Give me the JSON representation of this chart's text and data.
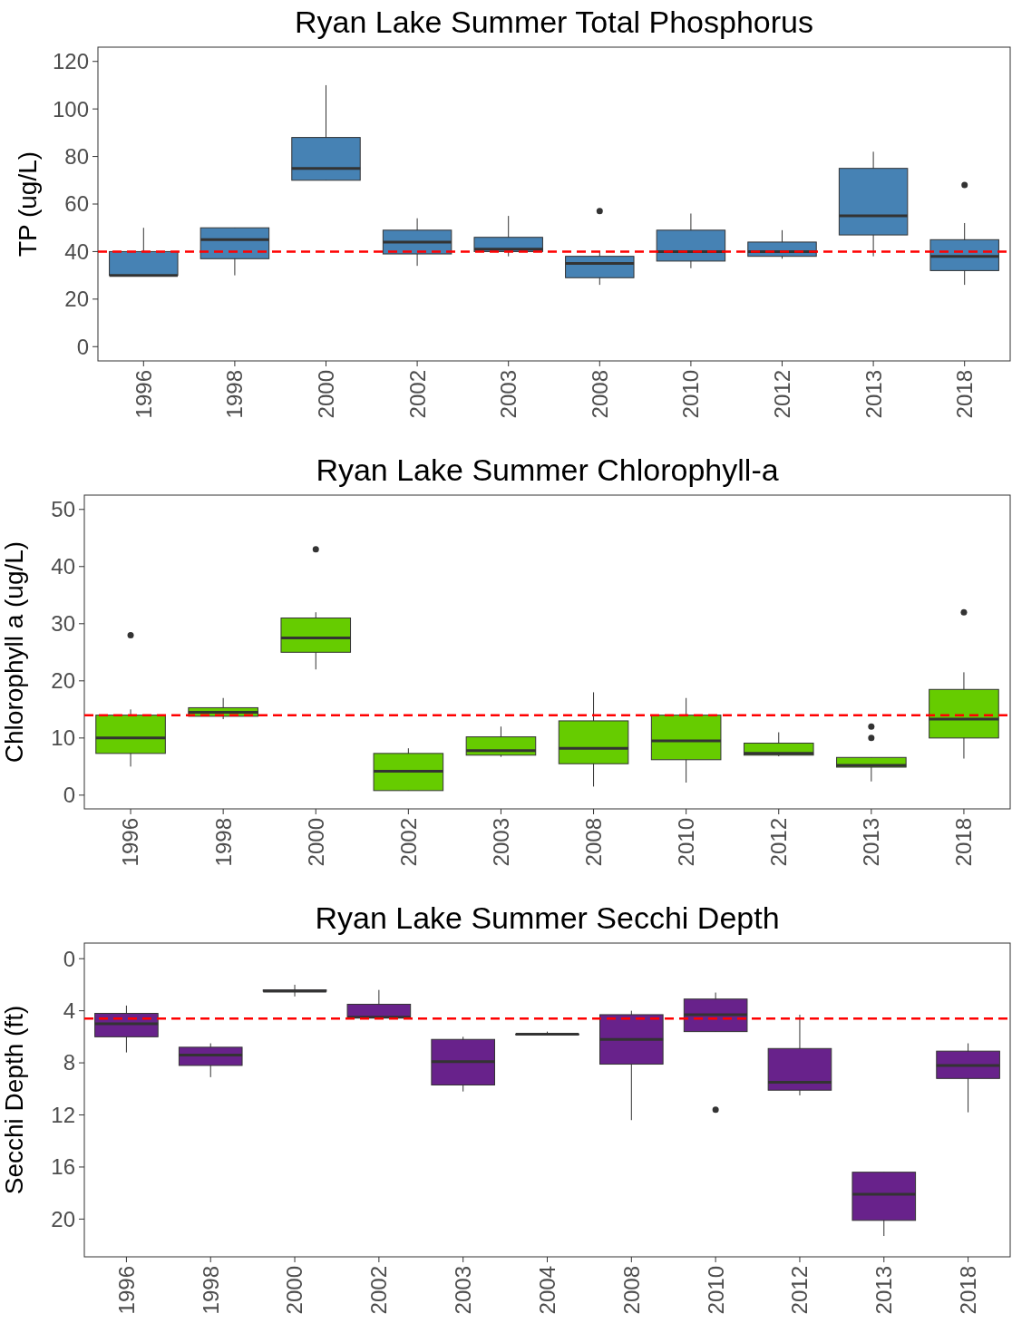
{
  "chart_data": [
    {
      "type": "box",
      "title": "Ryan Lake Summer Total Phosphorus",
      "ylabel": "TP (ug/L)",
      "color": "#4682b4",
      "ylim": [
        -6,
        126
      ],
      "yticks": [
        0,
        20,
        40,
        60,
        80,
        100,
        120
      ],
      "grid": false,
      "categories": [
        "1996",
        "1998",
        "2000",
        "2002",
        "2003",
        "2008",
        "2010",
        "2012",
        "2013",
        "2018"
      ],
      "boxes": [
        {
          "low": 30,
          "q1": 30,
          "median": 30,
          "q3": 40,
          "high": 50
        },
        {
          "low": 30,
          "q1": 37,
          "median": 45,
          "q3": 50,
          "high": 50
        },
        {
          "low": 70,
          "q1": 70,
          "median": 75,
          "q3": 88,
          "high": 110
        },
        {
          "low": 34,
          "q1": 39,
          "median": 44,
          "q3": 49,
          "high": 54
        },
        {
          "low": 38,
          "q1": 40,
          "median": 41,
          "q3": 46,
          "high": 55
        },
        {
          "low": 26,
          "q1": 29,
          "median": 35,
          "q3": 38,
          "high": 40,
          "outliers": [
            57
          ]
        },
        {
          "low": 33,
          "q1": 36,
          "median": 40,
          "q3": 49,
          "high": 56
        },
        {
          "low": 37,
          "q1": 38,
          "median": 40,
          "q3": 44,
          "high": 49
        },
        {
          "low": 38,
          "q1": 47,
          "median": 55,
          "q3": 75,
          "high": 82
        },
        {
          "low": 26,
          "q1": 32,
          "median": 38,
          "q3": 45,
          "high": 52,
          "outliers": [
            68
          ]
        }
      ],
      "ref_lines": [
        {
          "axis": "y",
          "value": 40,
          "color": "#ff0000",
          "line_style": "dashed"
        }
      ]
    },
    {
      "type": "box",
      "title": "Ryan Lake Summer Chlorophyll-a",
      "ylabel": "Chlorophyll a (ug/L)",
      "color": "#66cc00",
      "ylim": [
        -2.4,
        52.5
      ],
      "yticks": [
        0,
        10,
        20,
        30,
        40,
        50
      ],
      "grid": false,
      "categories": [
        "1996",
        "1998",
        "2000",
        "2002",
        "2003",
        "2008",
        "2010",
        "2012",
        "2013",
        "2018"
      ],
      "boxes": [
        {
          "low": 5,
          "q1": 7.3,
          "median": 10,
          "q3": 14,
          "high": 15,
          "outliers": [
            28
          ]
        },
        {
          "low": 13.3,
          "q1": 13.8,
          "median": 14.5,
          "q3": 15.3,
          "high": 17
        },
        {
          "low": 22,
          "q1": 25,
          "median": 27.5,
          "q3": 31,
          "high": 32,
          "outliers": [
            43
          ]
        },
        {
          "low": 0.8,
          "q1": 0.8,
          "median": 4.2,
          "q3": 7.3,
          "high": 8.2
        },
        {
          "low": 6.7,
          "q1": 7,
          "median": 7.8,
          "q3": 10.2,
          "high": 12
        },
        {
          "low": 1.5,
          "q1": 5.5,
          "median": 8.2,
          "q3": 13,
          "high": 18
        },
        {
          "low": 2.2,
          "q1": 6.2,
          "median": 9.5,
          "q3": 14,
          "high": 17
        },
        {
          "low": 6.8,
          "q1": 7,
          "median": 7.3,
          "q3": 9.1,
          "high": 11
        },
        {
          "low": 2.4,
          "q1": 4.9,
          "median": 5.2,
          "q3": 6.6,
          "high": 6.6,
          "outliers": [
            10,
            12
          ]
        },
        {
          "low": 6.4,
          "q1": 10,
          "median": 13.3,
          "q3": 18.5,
          "high": 21.5,
          "outliers": [
            32
          ]
        }
      ],
      "ref_lines": [
        {
          "axis": "y",
          "value": 14,
          "color": "#ff0000",
          "line_style": "dashed"
        }
      ]
    },
    {
      "type": "box",
      "title": "Ryan Lake Summer Secchi Depth",
      "ylabel": "Secchi Depth (ft)",
      "color": "#68228b",
      "ylim": [
        22.9,
        -1.2
      ],
      "yticks": [
        0,
        4,
        8,
        12,
        16,
        20
      ],
      "grid": false,
      "categories": [
        "1996",
        "1998",
        "2000",
        "2002",
        "2003",
        "2004",
        "2008",
        "2010",
        "2012",
        "2013",
        "2018"
      ],
      "boxes": [
        {
          "low": 3.6,
          "q1": 4.2,
          "median": 5,
          "q3": 6,
          "high": 7.2
        },
        {
          "low": 6.5,
          "q1": 6.8,
          "median": 7.4,
          "q3": 8.2,
          "high": 9.1
        },
        {
          "low": 2,
          "q1": 2.4,
          "median": 2.5,
          "q3": 2.5,
          "high": 2.9
        },
        {
          "low": 2.4,
          "q1": 3.5,
          "median": 4.5,
          "q3": 4.5,
          "high": 4.5
        },
        {
          "low": 6,
          "q1": 6.2,
          "median": 7.9,
          "q3": 9.7,
          "high": 10.2
        },
        {
          "low": 5.6,
          "q1": 5.8,
          "median": 5.8,
          "q3": 5.8,
          "high": 5.8
        },
        {
          "low": 4,
          "q1": 4.3,
          "median": 6.2,
          "q3": 8.1,
          "high": 12.4
        },
        {
          "low": 2.6,
          "q1": 3.1,
          "median": 4.3,
          "q3": 5.6,
          "high": 5.6,
          "outliers": [
            11.6
          ]
        },
        {
          "low": 4.3,
          "q1": 6.9,
          "median": 9.5,
          "q3": 10.1,
          "high": 10.5
        },
        {
          "low": 16.4,
          "q1": 16.4,
          "median": 18.1,
          "q3": 20.1,
          "high": 21.3
        },
        {
          "low": 6.5,
          "q1": 7.1,
          "median": 8.2,
          "q3": 9.2,
          "high": 11.8
        }
      ],
      "ref_lines": [
        {
          "axis": "y",
          "value": 4.6,
          "color": "#ff0000",
          "line_style": "dashed"
        }
      ]
    }
  ]
}
